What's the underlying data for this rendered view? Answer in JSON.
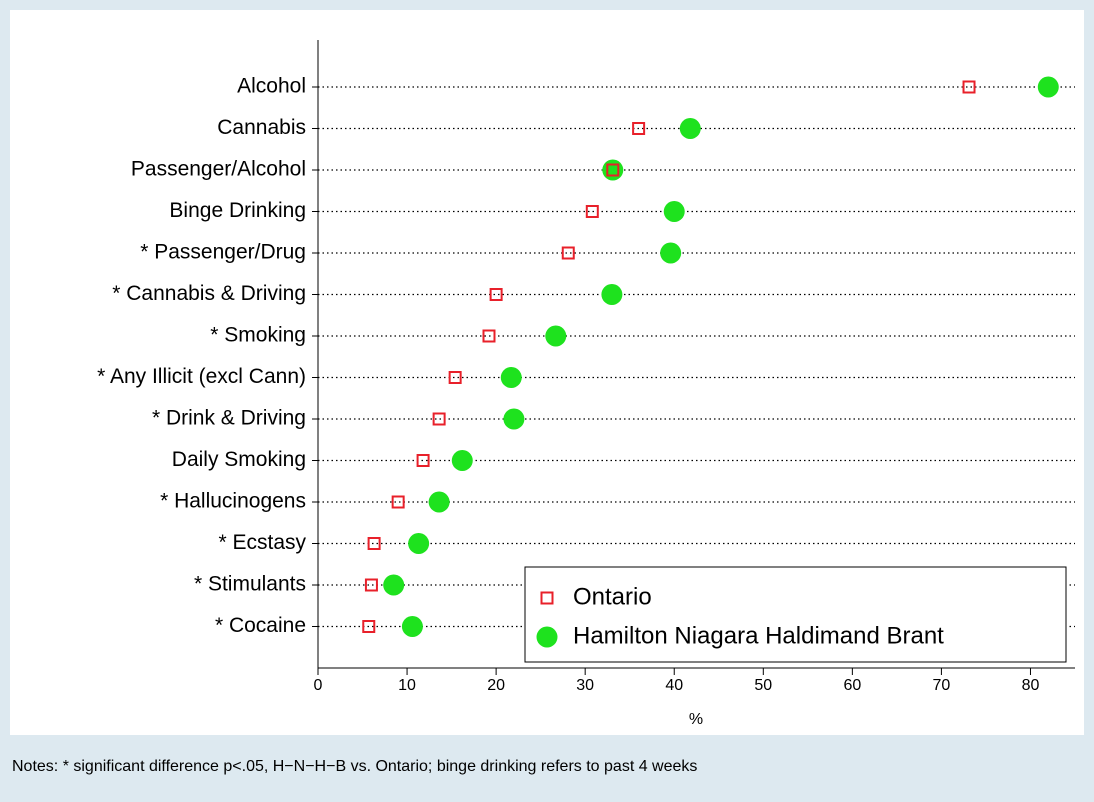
{
  "chart_data": {
    "type": "dot",
    "categories": [
      "Alcohol",
      "Cannabis",
      "Passenger/Alcohol",
      "Binge Drinking",
      "* Passenger/Drug",
      "* Cannabis & Driving",
      "* Smoking",
      "* Any Illicit (excl Cann)",
      "* Drink & Driving",
      "Daily Smoking",
      "* Hallucinogens",
      "* Ecstasy",
      "* Stimulants",
      "* Cocaine"
    ],
    "series": [
      {
        "name": "Ontario",
        "color": "#e8202a",
        "marker": "square",
        "values": [
          73.1,
          36.0,
          33.1,
          30.8,
          28.1,
          20.0,
          19.2,
          15.4,
          13.6,
          11.8,
          9.0,
          6.3,
          6.0,
          5.7
        ]
      },
      {
        "name": "Hamilton Niagara Haldimand Brant",
        "color": "#1ee21e",
        "marker": "circle",
        "values": [
          82.0,
          41.8,
          33.1,
          40.0,
          39.6,
          33.0,
          26.7,
          21.7,
          22.0,
          16.2,
          13.6,
          11.3,
          8.5,
          10.6
        ]
      }
    ],
    "xlabel": "%",
    "xlim": [
      0,
      85
    ],
    "xticks": [
      0,
      10,
      20,
      30,
      40,
      50,
      60,
      70,
      80
    ],
    "grid": true,
    "legend": "bottom right",
    "note": "Notes: * significant difference p<.05, H−N−H−B vs. Ontario; binge drinking refers to past 4 weeks"
  }
}
